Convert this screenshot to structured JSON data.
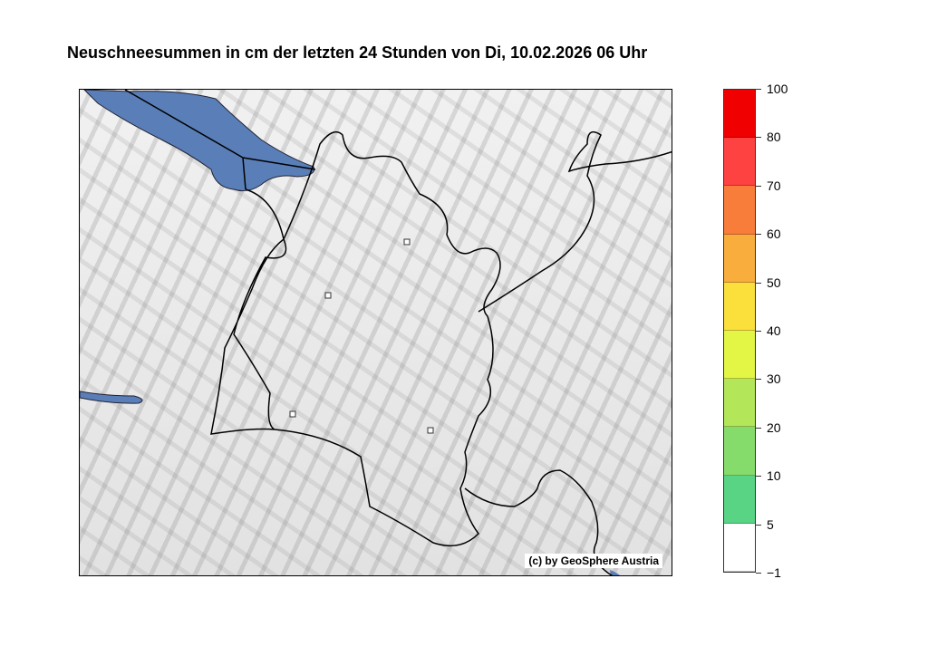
{
  "title": "Neuschneesummen in cm der letzten 24 Stunden von Di, 10.02.2026 06 Uhr",
  "credit": "(c) by GeoSphere Austria",
  "colorbar": {
    "levels": [
      "100",
      "80",
      "70",
      "60",
      "50",
      "40",
      "30",
      "20",
      "10",
      "5",
      "−1"
    ],
    "colors": [
      "#f00000",
      "#fe4242",
      "#f87d3a",
      "#f9ad3c",
      "#fbe03c",
      "#e3f545",
      "#b4e65a",
      "#86dc6b",
      "#58d484",
      "#ffffff"
    ]
  },
  "map": {
    "lake_color": "#5a7fb8",
    "border_color": "#000000"
  }
}
